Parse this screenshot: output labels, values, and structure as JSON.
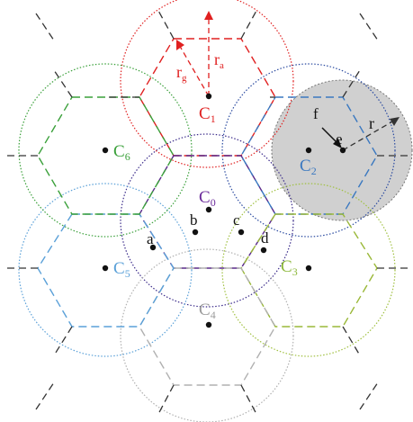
{
  "cells": [
    {
      "id": "C0",
      "main": "C",
      "sub": "0",
      "color": "#6a2a9a"
    },
    {
      "id": "C1",
      "main": "C",
      "sub": "1",
      "color": "#e02020"
    },
    {
      "id": "C2",
      "main": "C",
      "sub": "2",
      "color": "#3a78c0"
    },
    {
      "id": "C3",
      "main": "C",
      "sub": "3",
      "color": "#8cb83a"
    },
    {
      "id": "C4",
      "main": "C",
      "sub": "4",
      "color": "#9a9a9a"
    },
    {
      "id": "C5",
      "main": "C",
      "sub": "5",
      "color": "#5aa0d8"
    },
    {
      "id": "C6",
      "main": "C",
      "sub": "6",
      "color": "#3aa03a"
    }
  ],
  "points": [
    {
      "id": "a",
      "label": "a"
    },
    {
      "id": "b",
      "label": "b"
    },
    {
      "id": "c",
      "label": "c"
    },
    {
      "id": "d",
      "label": "d"
    },
    {
      "id": "e",
      "label": "e"
    },
    {
      "id": "f",
      "label": "f"
    }
  ],
  "radii": {
    "ra": {
      "main": "r",
      "sub": "a"
    },
    "rg": {
      "main": "r",
      "sub": "g"
    },
    "r": {
      "main": "r",
      "sub": ""
    }
  },
  "colors": {
    "c0_circle": "#3a2a8a",
    "c1_circle": "#e02020",
    "c2_circle": "#2a4aa0",
    "c3_circle": "#a0c040",
    "c4_circle": "#b0b0b0",
    "c5_circle": "#5aa0d8",
    "c6_circle": "#3aa03a",
    "grid_ext": "#333333",
    "shade": "#c8c8c8"
  }
}
